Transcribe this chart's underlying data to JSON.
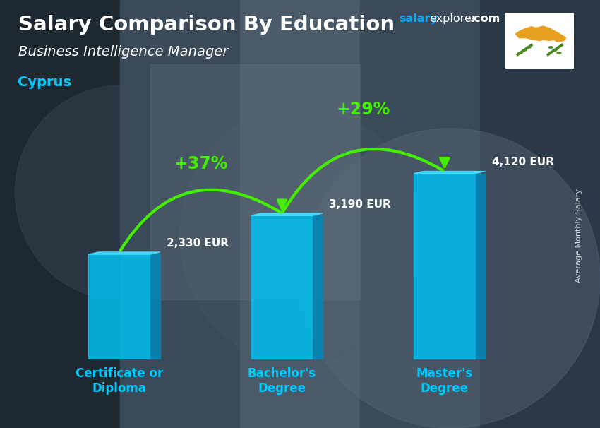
{
  "title": "Salary Comparison By Education",
  "subtitle": "Business Intelligence Manager",
  "country": "Cyprus",
  "categories": [
    "Certificate or\nDiploma",
    "Bachelor's\nDegree",
    "Master's\nDegree"
  ],
  "values": [
    2330,
    3190,
    4120
  ],
  "labels": [
    "2,330 EUR",
    "3,190 EUR",
    "4,120 EUR"
  ],
  "pct_labels": [
    "+37%",
    "+29%"
  ],
  "bar_color_face": "#00BFEF",
  "bar_color_dark": "#0088BB",
  "bar_color_top": "#44DDFF",
  "bar_alpha": 0.85,
  "arrow_color": "#44EE00",
  "pct_color": "#44EE00",
  "title_color": "#FFFFFF",
  "subtitle_color": "#FFFFFF",
  "country_color": "#00CCFF",
  "label_color": "#FFFFFF",
  "tick_color": "#00CCFF",
  "ylabel": "Average Monthly Salary",
  "bg_dark": "#2a3540",
  "bg_mid": "#4a5a6a",
  "ylim": [
    0,
    5500
  ],
  "bar_width": 0.38,
  "bar_3d_depth": 0.07,
  "figsize": [
    8.5,
    6.06
  ],
  "dpi": 100,
  "website_color_salary": "#00AAFF",
  "website_color_rest": "#FFFFFF"
}
